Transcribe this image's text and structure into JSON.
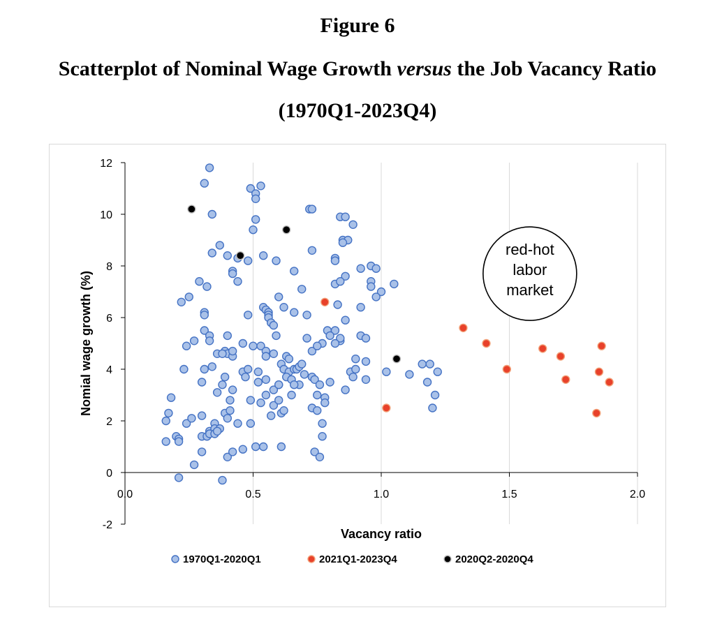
{
  "figure": {
    "label": "Figure 6",
    "heading_before": "Scatterplot of Nominal Wage Growth ",
    "heading_italic": "versus",
    "heading_after": " the Job Vacancy Ratio",
    "period": "(1970Q1-2023Q4)"
  },
  "chart_data": {
    "type": "scatter",
    "xlabel": "Vacancy ratio",
    "ylabel": "Nomial wage growth (%)",
    "xlim": [
      0,
      2
    ],
    "ylim": [
      -2,
      12
    ],
    "x_ticks": [
      "0.0",
      "0.5",
      "1.0",
      "1.5",
      "2.0"
    ],
    "y_ticks": [
      "-2",
      "0",
      "2",
      "4",
      "6",
      "8",
      "10",
      "12"
    ],
    "grid": "vertical",
    "legend_position": "bottom",
    "annotation": {
      "lines": [
        "red-hot",
        "labor",
        "market"
      ],
      "x": 1.58,
      "y": 7.7
    },
    "series": [
      {
        "name": "1970Q1-2020Q1",
        "fill": "#a9c1e8",
        "stroke": "#4472c4",
        "points": [
          [
            0.33,
            11.8
          ],
          [
            0.31,
            11.2
          ],
          [
            0.34,
            10.0
          ],
          [
            0.49,
            11.0
          ],
          [
            0.53,
            11.1
          ],
          [
            0.51,
            10.8
          ],
          [
            0.51,
            10.6
          ],
          [
            0.72,
            10.2
          ],
          [
            0.73,
            10.2
          ],
          [
            0.84,
            9.9
          ],
          [
            0.86,
            9.9
          ],
          [
            0.51,
            9.8
          ],
          [
            0.89,
            9.6
          ],
          [
            0.5,
            9.4
          ],
          [
            0.85,
            9.0
          ],
          [
            0.87,
            9.0
          ],
          [
            0.85,
            8.9
          ],
          [
            0.37,
            8.8
          ],
          [
            0.34,
            8.5
          ],
          [
            0.44,
            8.3
          ],
          [
            0.54,
            8.4
          ],
          [
            0.73,
            8.6
          ],
          [
            0.4,
            8.4
          ],
          [
            0.48,
            8.2
          ],
          [
            0.59,
            8.2
          ],
          [
            0.82,
            8.3
          ],
          [
            0.82,
            8.2
          ],
          [
            0.92,
            7.9
          ],
          [
            0.96,
            8.0
          ],
          [
            0.98,
            7.9
          ],
          [
            0.42,
            7.8
          ],
          [
            0.42,
            7.7
          ],
          [
            0.66,
            7.8
          ],
          [
            0.86,
            7.6
          ],
          [
            0.29,
            7.4
          ],
          [
            0.44,
            7.4
          ],
          [
            0.82,
            7.3
          ],
          [
            0.84,
            7.4
          ],
          [
            0.96,
            7.4
          ],
          [
            0.96,
            7.2
          ],
          [
            1.05,
            7.3
          ],
          [
            0.32,
            7.2
          ],
          [
            0.69,
            7.1
          ],
          [
            1.0,
            7.0
          ],
          [
            0.25,
            6.8
          ],
          [
            0.22,
            6.6
          ],
          [
            0.6,
            6.8
          ],
          [
            0.98,
            6.8
          ],
          [
            0.83,
            6.5
          ],
          [
            0.62,
            6.4
          ],
          [
            0.92,
            6.4
          ],
          [
            0.54,
            6.4
          ],
          [
            0.55,
            6.3
          ],
          [
            0.66,
            6.2
          ],
          [
            0.31,
            6.2
          ],
          [
            0.31,
            6.1
          ],
          [
            0.56,
            6.2
          ],
          [
            0.56,
            6.1
          ],
          [
            0.48,
            6.1
          ],
          [
            0.71,
            6.1
          ],
          [
            0.56,
            6.0
          ],
          [
            0.57,
            5.8
          ],
          [
            0.58,
            5.7
          ],
          [
            0.86,
            5.9
          ],
          [
            0.31,
            5.5
          ],
          [
            0.33,
            5.3
          ],
          [
            0.33,
            5.1
          ],
          [
            0.4,
            5.3
          ],
          [
            0.59,
            5.3
          ],
          [
            0.71,
            5.2
          ],
          [
            0.77,
            5.0
          ],
          [
            0.79,
            5.5
          ],
          [
            0.82,
            5.5
          ],
          [
            0.8,
            5.3
          ],
          [
            0.84,
            5.1
          ],
          [
            0.84,
            5.2
          ],
          [
            0.82,
            5.0
          ],
          [
            0.92,
            5.3
          ],
          [
            0.94,
            5.2
          ],
          [
            0.24,
            4.9
          ],
          [
            0.27,
            5.1
          ],
          [
            0.46,
            5.0
          ],
          [
            0.5,
            4.9
          ],
          [
            0.53,
            4.9
          ],
          [
            0.55,
            4.7
          ],
          [
            0.55,
            4.5
          ],
          [
            0.58,
            4.6
          ],
          [
            0.63,
            4.5
          ],
          [
            0.64,
            4.4
          ],
          [
            0.39,
            4.7
          ],
          [
            0.4,
            4.6
          ],
          [
            0.42,
            4.5
          ],
          [
            0.42,
            4.7
          ],
          [
            0.36,
            4.6
          ],
          [
            0.38,
            4.6
          ],
          [
            0.73,
            4.7
          ],
          [
            0.75,
            4.9
          ],
          [
            0.9,
            4.4
          ],
          [
            0.94,
            4.3
          ],
          [
            0.23,
            4.0
          ],
          [
            0.31,
            4.0
          ],
          [
            0.34,
            4.1
          ],
          [
            0.46,
            3.9
          ],
          [
            0.48,
            4.0
          ],
          [
            0.52,
            3.9
          ],
          [
            0.55,
            3.6
          ],
          [
            0.47,
            3.7
          ],
          [
            0.6,
            3.4
          ],
          [
            0.61,
            4.2
          ],
          [
            0.62,
            4.0
          ],
          [
            0.64,
            3.9
          ],
          [
            0.66,
            4.0
          ],
          [
            0.67,
            4.0
          ],
          [
            0.68,
            4.1
          ],
          [
            0.69,
            4.2
          ],
          [
            0.7,
            3.8
          ],
          [
            0.73,
            3.7
          ],
          [
            0.74,
            3.6
          ],
          [
            0.63,
            3.7
          ],
          [
            0.65,
            3.6
          ],
          [
            0.68,
            3.4
          ],
          [
            0.76,
            3.4
          ],
          [
            0.8,
            3.5
          ],
          [
            0.88,
            3.9
          ],
          [
            0.9,
            4.0
          ],
          [
            0.94,
            3.6
          ],
          [
            0.89,
            3.7
          ],
          [
            0.39,
            3.7
          ],
          [
            0.38,
            3.4
          ],
          [
            0.42,
            3.2
          ],
          [
            0.52,
            3.5
          ],
          [
            0.55,
            3.0
          ],
          [
            0.58,
            3.2
          ],
          [
            0.6,
            3.4
          ],
          [
            0.58,
            2.6
          ],
          [
            0.57,
            2.2
          ],
          [
            0.61,
            2.3
          ],
          [
            0.62,
            2.4
          ],
          [
            0.6,
            2.8
          ],
          [
            0.65,
            3.0
          ],
          [
            0.66,
            3.4
          ],
          [
            0.75,
            3.0
          ],
          [
            0.86,
            3.2
          ],
          [
            0.36,
            3.1
          ],
          [
            0.41,
            2.8
          ],
          [
            0.3,
            3.5
          ],
          [
            0.18,
            2.9
          ],
          [
            0.17,
            2.3
          ],
          [
            0.16,
            2.0
          ],
          [
            0.24,
            1.9
          ],
          [
            0.26,
            2.1
          ],
          [
            0.3,
            2.2
          ],
          [
            0.33,
            1.6
          ],
          [
            0.35,
            1.9
          ],
          [
            0.35,
            1.7
          ],
          [
            0.37,
            1.7
          ],
          [
            0.39,
            2.3
          ],
          [
            0.4,
            2.1
          ],
          [
            0.41,
            2.4
          ],
          [
            0.44,
            1.9
          ],
          [
            0.49,
            2.8
          ],
          [
            0.53,
            2.7
          ],
          [
            0.49,
            1.9
          ],
          [
            0.73,
            2.5
          ],
          [
            0.77,
            1.9
          ],
          [
            0.78,
            2.9
          ],
          [
            0.78,
            2.7
          ],
          [
            0.75,
            2.4
          ],
          [
            0.2,
            1.4
          ],
          [
            0.21,
            1.3
          ],
          [
            0.16,
            1.2
          ],
          [
            0.21,
            1.2
          ],
          [
            0.3,
            1.4
          ],
          [
            0.32,
            1.4
          ],
          [
            0.33,
            1.5
          ],
          [
            0.35,
            1.5
          ],
          [
            0.36,
            1.6
          ],
          [
            0.51,
            1.0
          ],
          [
            0.54,
            1.0
          ],
          [
            0.61,
            1.0
          ],
          [
            0.46,
            0.9
          ],
          [
            0.4,
            0.6
          ],
          [
            0.42,
            0.8
          ],
          [
            0.3,
            0.8
          ],
          [
            0.27,
            0.3
          ],
          [
            0.74,
            0.8
          ],
          [
            0.76,
            0.6
          ],
          [
            0.77,
            1.4
          ],
          [
            0.21,
            -0.2
          ],
          [
            0.38,
            -0.3
          ],
          [
            1.02,
            3.9
          ],
          [
            1.11,
            3.8
          ],
          [
            1.16,
            4.2
          ],
          [
            1.19,
            4.2
          ],
          [
            1.18,
            3.5
          ],
          [
            1.22,
            3.9
          ],
          [
            1.21,
            3.0
          ],
          [
            1.2,
            2.5
          ]
        ]
      },
      {
        "name": "2021Q1-2023Q4",
        "fill": "#e8412a",
        "stroke": "#f2a27a",
        "points": [
          [
            0.78,
            6.6
          ],
          [
            1.02,
            2.5
          ],
          [
            1.32,
            5.6
          ],
          [
            1.41,
            5.0
          ],
          [
            1.49,
            4.0
          ],
          [
            1.63,
            4.8
          ],
          [
            1.7,
            4.5
          ],
          [
            1.72,
            3.6
          ],
          [
            1.84,
            2.3
          ],
          [
            1.85,
            3.9
          ],
          [
            1.86,
            4.9
          ],
          [
            1.89,
            3.5
          ]
        ]
      },
      {
        "name": "2020Q2-2020Q4",
        "fill": "#000000",
        "stroke": "#bfbfbf",
        "points": [
          [
            0.26,
            10.2
          ],
          [
            0.45,
            8.4
          ],
          [
            0.63,
            9.4
          ],
          [
            1.06,
            4.4
          ]
        ]
      }
    ]
  }
}
